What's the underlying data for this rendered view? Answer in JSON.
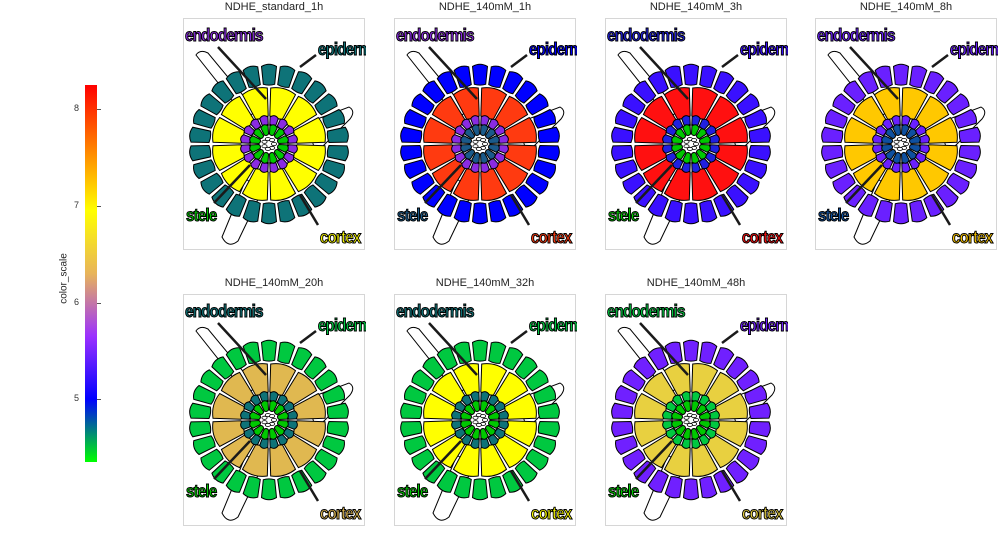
{
  "colorbar": {
    "title": "color_scale",
    "ticks": [
      {
        "label": "5",
        "value": 5
      },
      {
        "label": "6",
        "value": 6
      },
      {
        "label": "7",
        "value": 7
      },
      {
        "label": "8",
        "value": 8
      }
    ],
    "min": 4.35,
    "max": 8.25,
    "gradient": [
      "#00ff00",
      "#0000ff",
      "#9b30ff",
      "#e8b45a",
      "#ffff00",
      "#ff8000",
      "#ff0000"
    ]
  },
  "labels": {
    "endodermis": "endodermis",
    "epidermis": "epidermis",
    "stele": "stele",
    "cortex": "cortex"
  },
  "panels": [
    {
      "title": "NDHE_standard_1h",
      "colors": {
        "epidermis": "#0e7378",
        "cortex": "#ffff00",
        "endodermis": "#8a2be2",
        "stele": "#00c800"
      }
    },
    {
      "title": "NDHE_140mM_1h",
      "colors": {
        "epidermis": "#0000ff",
        "cortex": "#ff3a10",
        "endodermis": "#8a2be2",
        "stele": "#1a5a8a"
      }
    },
    {
      "title": "NDHE_140mM_3h",
      "colors": {
        "epidermis": "#3a10ff",
        "cortex": "#ff1010",
        "endodermis": "#2020e0",
        "stele": "#00c800"
      }
    },
    {
      "title": "NDHE_140mM_8h",
      "colors": {
        "epidermis": "#6a20ff",
        "cortex": "#ffc800",
        "endodermis": "#6a20ff",
        "stele": "#0e50a0"
      }
    },
    {
      "title": "NDHE_140mM_20h",
      "colors": {
        "epidermis": "#00c840",
        "cortex": "#e0b850",
        "endodermis": "#0e7378",
        "stele": "#00c800"
      }
    },
    {
      "title": "NDHE_140mM_32h",
      "colors": {
        "epidermis": "#00c840",
        "cortex": "#ffff00",
        "endodermis": "#0e7378",
        "stele": "#00c800"
      }
    },
    {
      "title": "NDHE_140mM_48h",
      "colors": {
        "epidermis": "#7020ff",
        "cortex": "#e8d040",
        "endodermis": "#00c840",
        "stele": "#00c800"
      }
    }
  ]
}
